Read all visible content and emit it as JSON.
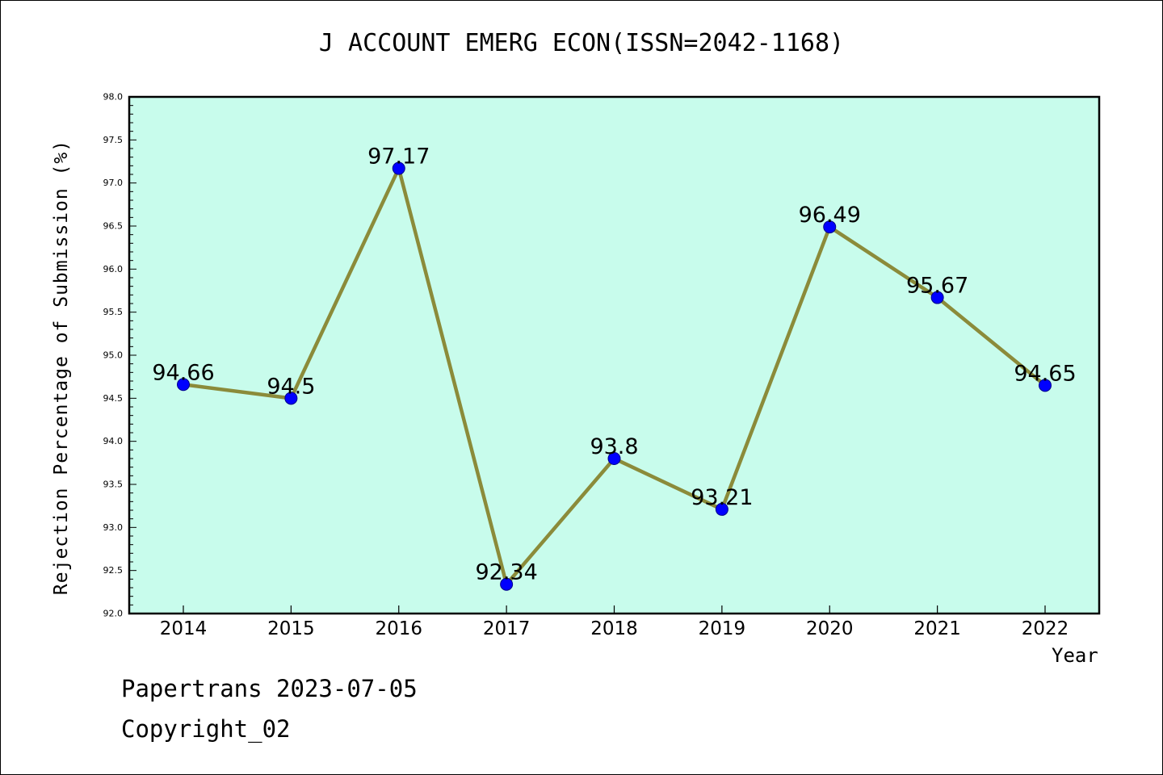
{
  "chart_data": {
    "type": "line",
    "title": "J ACCOUNT EMERG ECON(ISSN=2042-1168)",
    "xlabel": "Year",
    "ylabel": "Rejection Percentage of Submission (%)",
    "categories": [
      "2014",
      "2015",
      "2016",
      "2017",
      "2018",
      "2019",
      "2020",
      "2021",
      "2022"
    ],
    "series": [
      {
        "values": [
          94.66,
          94.5,
          97.17,
          92.34,
          93.8,
          93.21,
          96.49,
          95.67,
          94.65
        ]
      }
    ],
    "data_labels": [
      "94.66",
      "94.5",
      "97.17",
      "92.34",
      "93.8",
      "93.21",
      "96.49",
      "95.67",
      "94.65"
    ],
    "ylim": [
      92.0,
      98.0
    ],
    "yticks": [
      "92.0",
      "92.5",
      "93.0",
      "93.5",
      "94.0",
      "94.5",
      "95.0",
      "95.5",
      "96.0",
      "96.5",
      "97.0",
      "97.5",
      "98.0"
    ],
    "grid": false,
    "legend": "none",
    "colors": {
      "plot_background": "#c8fcec",
      "line": "#8b8b3a",
      "marker": "#0000ff"
    }
  },
  "footer": {
    "line1": "Papertrans 2023-07-05",
    "line2": "Copyright_02"
  }
}
